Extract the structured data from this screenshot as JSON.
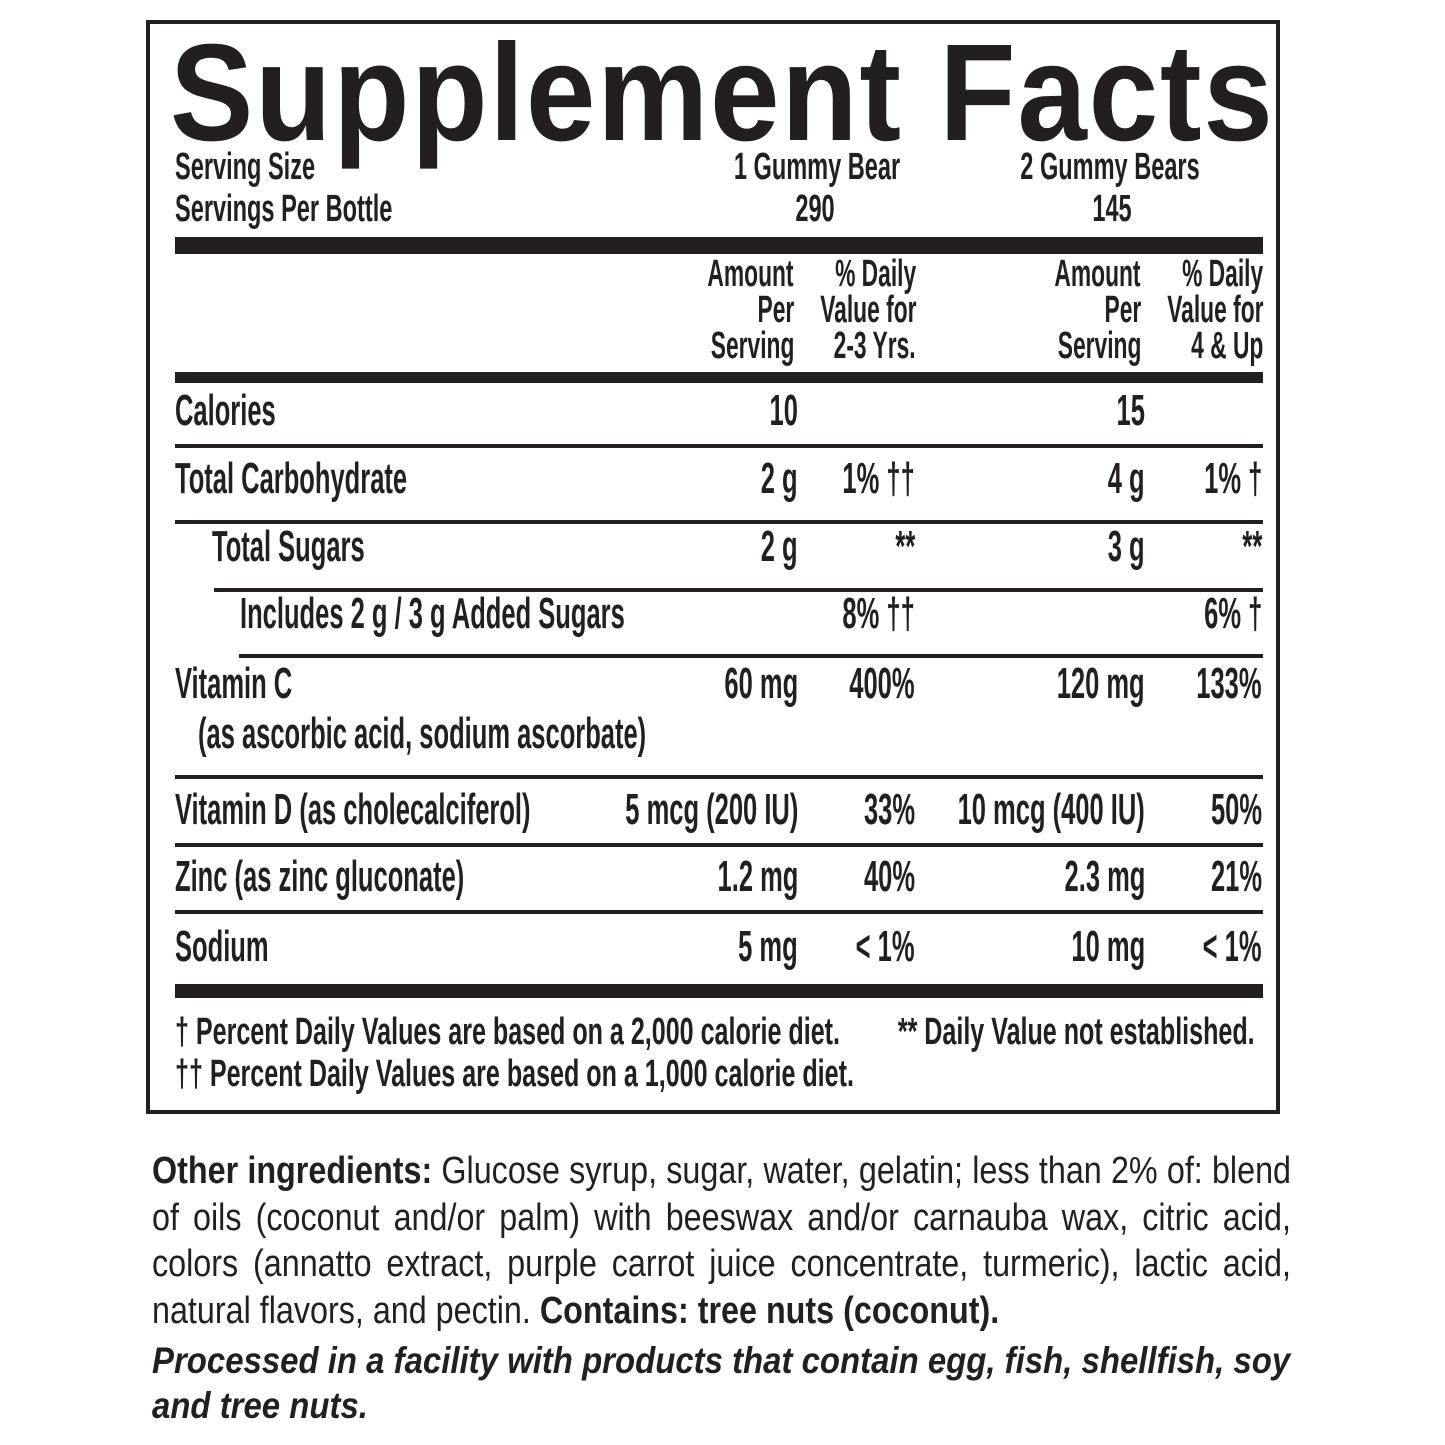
{
  "title": "Supplement Facts",
  "serving": {
    "size_label": "Serving Size",
    "per_bottle_label": "Servings Per Bottle",
    "size_a": "1 Gummy Bear",
    "size_b": "2 Gummy Bears",
    "per_bottle_a": "290",
    "per_bottle_b": "145"
  },
  "headers": {
    "amount": [
      "Amount",
      "Per",
      "Serving"
    ],
    "dv_a": [
      "% Daily",
      "Value for",
      "2-3 Yrs."
    ],
    "dv_b": [
      "% Daily",
      "Value for",
      "4 & Up"
    ]
  },
  "rows": [
    {
      "label": "Calories",
      "amount_a": "10",
      "dv_a": "",
      "amount_b": "15",
      "dv_b": ""
    },
    {
      "label": "Total Carbohydrate",
      "amount_a": "2 g",
      "dv_a": "1% ††",
      "amount_b": "4 g",
      "dv_b": "1% †"
    },
    {
      "label": "Total Sugars",
      "amount_a": "2 g",
      "dv_a": "**",
      "amount_b": "3 g",
      "dv_b": "**"
    },
    {
      "label": "Includes 2 g / 3 g Added Sugars",
      "amount_a": "",
      "dv_a": "8% ††",
      "amount_b": "",
      "dv_b": "6% †"
    },
    {
      "label": "Vitamin C",
      "sublabel": "(as ascorbic acid, sodium ascorbate)",
      "amount_a": "60 mg",
      "dv_a": "400%",
      "amount_b": "120 mg",
      "dv_b": "133%"
    },
    {
      "label": "Vitamin D (as cholecalciferol)",
      "amount_a": "5 mcg (200 IU)",
      "dv_a": "33%",
      "amount_b": "10 mcg (400 IU)",
      "dv_b": "50%"
    },
    {
      "label": "Zinc (as zinc gluconate)",
      "amount_a": "1.2 mg",
      "dv_a": "40%",
      "amount_b": "2.3 mg",
      "dv_b": "21%"
    },
    {
      "label": "Sodium",
      "amount_a": "5 mg",
      "dv_a": "< 1%",
      "amount_b": "10 mg",
      "dv_b": "< 1%"
    }
  ],
  "footnotes": {
    "dagger": "† Percent Daily Values are based on a 2,000 calorie diet.",
    "double_dagger": "†† Percent Daily Values are based on a 1,000 calorie diet.",
    "not_established": "** Daily Value not established."
  },
  "ingredients": {
    "label": "Other ingredients:",
    "text": " Glucose syrup, sugar, water, gelatin; less than 2% of: blend of oils (coconut and/or palm) with beeswax and/or carnauba wax, citric acid, colors (annatto extract, purple carrot juice concentrate, turmeric), lactic acid, natural flavors, and pectin. ",
    "contains": "Contains: tree nuts (coconut)."
  },
  "facility_notice": "Processed in a facility with products that contain egg, fish, shellfish, soy and tree nuts."
}
